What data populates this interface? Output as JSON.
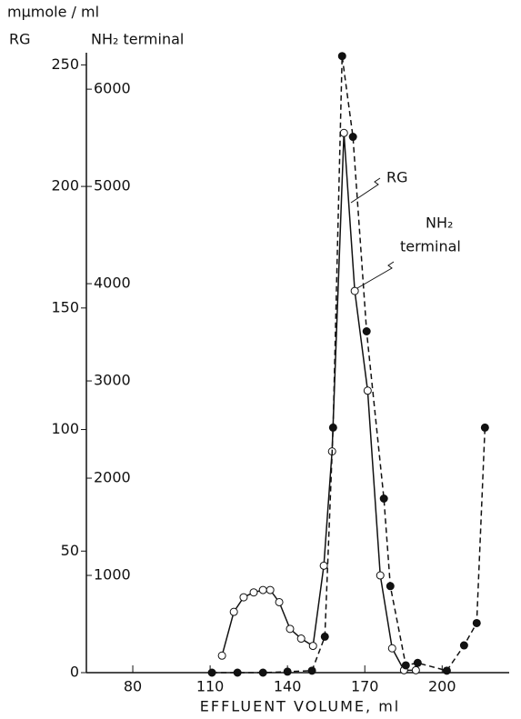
{
  "chart_data": {
    "type": "line",
    "y_unit": "mμmole / ml",
    "y_label": "RG",
    "y2_label": "NH₂ terminal",
    "x_label": "EFFLUENT VOLUME, ml",
    "annotations": [
      "RG",
      "NH₂",
      "terminal"
    ],
    "xlim": [
      62,
      226
    ],
    "xticks": [
      80,
      110,
      140,
      170,
      200
    ],
    "ylim": [
      0,
      255
    ],
    "yticks": [
      0,
      50,
      100,
      150,
      200,
      250
    ],
    "y2lim": [
      0,
      6375
    ],
    "y2ticks": [
      1000,
      2000,
      3000,
      4000,
      5000,
      6000
    ],
    "series": [
      {
        "name": "RG",
        "color": "#111111",
        "marker": "open",
        "dashed": false,
        "x": [
          114.6,
          119.2,
          123,
          126.9,
          130.5,
          133.3,
          136.8,
          141,
          145.3,
          149.9,
          154.1,
          157.3,
          161.9,
          166.1,
          171.1,
          176,
          180.6,
          185.2,
          189.8
        ],
        "values": [
          7,
          25,
          31,
          33,
          34,
          34,
          29,
          18,
          14,
          11,
          44,
          91,
          222,
          157,
          116,
          40,
          10,
          1,
          1
        ]
      },
      {
        "name": "NH₂ terminal",
        "color": "#111111",
        "marker": "filled",
        "dashed": true,
        "axis": "y2",
        "x": [
          110.7,
          120.6,
          130.5,
          140,
          149.5,
          154.5,
          157.7,
          161.2,
          165.4,
          170.7,
          177.4,
          179.9,
          185.9,
          190.5,
          201.8,
          208.5,
          213.4,
          216.6
        ],
        "values": [
          0,
          0,
          0,
          10,
          20,
          370,
          2520,
          6340,
          5510,
          3510,
          1790,
          890,
          75,
          100,
          20,
          280,
          510,
          2520
        ]
      }
    ]
  }
}
